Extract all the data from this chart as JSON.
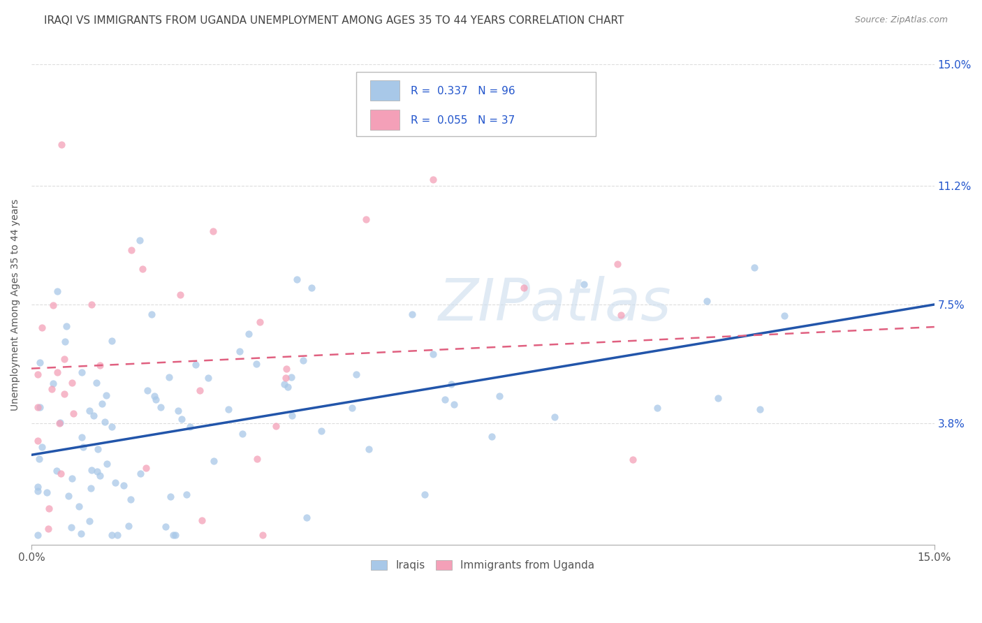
{
  "title": "IRAQI VS IMMIGRANTS FROM UGANDA UNEMPLOYMENT AMONG AGES 35 TO 44 YEARS CORRELATION CHART",
  "source": "Source: ZipAtlas.com",
  "ylabel": "Unemployment Among Ages 35 to 44 years",
  "xmin": 0.0,
  "xmax": 0.15,
  "ymin": 0.0,
  "ymax": 0.15,
  "ytick_vals": [
    0.038,
    0.075,
    0.112,
    0.15
  ],
  "ytick_labels": [
    "3.8%",
    "7.5%",
    "11.2%",
    "15.0%"
  ],
  "xtick_vals": [
    0.0,
    0.15
  ],
  "xtick_labels": [
    "0.0%",
    "15.0%"
  ],
  "watermark": "ZIPatlas",
  "series_iraqis": {
    "label": "Iraqis",
    "R": 0.337,
    "N": 96,
    "color": "#a8c8e8",
    "trend_color": "#2255aa",
    "trend_style": "solid"
  },
  "series_uganda": {
    "label": "Immigrants from Uganda",
    "R": 0.055,
    "N": 37,
    "color": "#f4a0b8",
    "trend_color": "#e06080",
    "trend_style": "dashed"
  },
  "legend_text_color": "#2255cc",
  "grid_color": "#dddddd",
  "title_fontsize": 11,
  "label_fontsize": 10,
  "tick_fontsize": 11,
  "background_color": "#ffffff",
  "iraq_trend_x0": 0.0,
  "iraq_trend_y0": 0.028,
  "iraq_trend_x1": 0.15,
  "iraq_trend_y1": 0.075,
  "uganda_trend_x0": 0.0,
  "uganda_trend_y0": 0.055,
  "uganda_trend_x1": 0.15,
  "uganda_trend_y1": 0.068
}
